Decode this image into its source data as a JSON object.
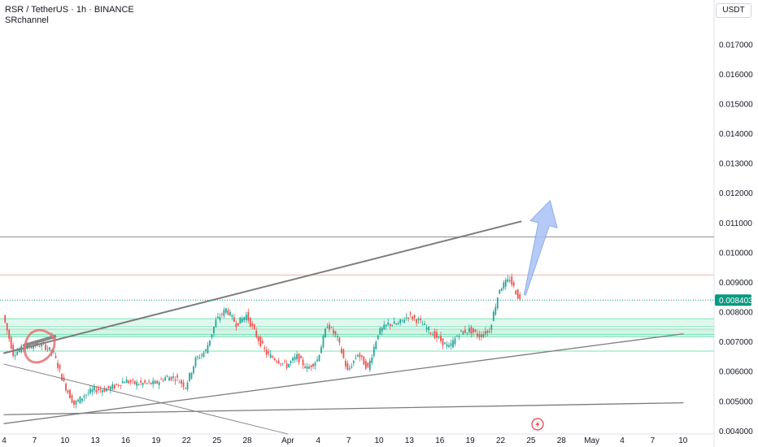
{
  "header": {
    "symbol_line": "RSR / TetherUS · 1h · BINANCE",
    "indicator_name": "SRchannel"
  },
  "currency_button": "USDT",
  "colors": {
    "up": "#26a69a",
    "down": "#ef5350",
    "zone": "#7ee2b8",
    "trendline": "#7c7c7c",
    "arrow": "#a9c1f5",
    "circle": "#e57373",
    "resistance": "#f4b2aa",
    "last_price_bg": "#089981"
  },
  "icons": {
    "alert": "lightning-icon"
  },
  "chart_data": {
    "type": "candlestick",
    "x_axis_labels": [
      "4",
      "7",
      "10",
      "13",
      "16",
      "19",
      "22",
      "25",
      "28",
      "Apr",
      "4",
      "7",
      "10",
      "13",
      "16",
      "19",
      "22",
      "25",
      "28",
      "May",
      "4",
      "7",
      "10"
    ],
    "y_axis_labels": [
      "0.017000",
      "0.016000",
      "0.015000",
      "0.014000",
      "0.013000",
      "0.012000",
      "0.011000",
      "0.010000",
      "0.009000",
      "0.008000",
      "0.007000",
      "0.006000",
      "0.005000",
      "0.004000"
    ],
    "ylim": [
      0.0039,
      0.0185
    ],
    "last_price": "0.008403",
    "horizontal_levels": [
      0.01053,
      0.00925,
      0.00778,
      0.00751,
      0.00743,
      0.00725,
      0.00717,
      0.00669
    ],
    "trendlines": [
      {
        "kind": "upper-channel",
        "from": [
          "Mar 4",
          0.00662
        ],
        "to": [
          "Apr 24",
          0.01105
        ]
      },
      {
        "kind": "lower-channel",
        "from": [
          "Mar 4",
          0.00425
        ],
        "to": [
          "May 10",
          0.00727
        ]
      },
      {
        "kind": "base-line",
        "from": [
          "Mar 4",
          0.00455
        ],
        "to": [
          "May 10",
          0.00495
        ]
      },
      {
        "kind": "descending",
        "from": [
          "Mar 4",
          0.00625
        ],
        "to": [
          "Apr 1",
          0.0039
        ]
      },
      {
        "kind": "marker",
        "from": [
          "Mar 6",
          0.00688
        ],
        "to": [
          "Mar 9",
          0.00718
        ]
      }
    ],
    "projection_arrow": {
      "from": [
        "Apr 24",
        0.00858
      ],
      "to": [
        "Apr 26",
        0.01175
      ]
    },
    "price_path": [
      [
        "Mar 4",
        0.0079
      ],
      [
        "Mar 5",
        0.0066
      ],
      [
        "Mar 6",
        0.0068
      ],
      [
        "Mar 7",
        0.0069
      ],
      [
        "Mar 8",
        0.0069
      ],
      [
        "Mar 9",
        0.0066
      ],
      [
        "Mar 10",
        0.0056
      ],
      [
        "Mar 11",
        0.0049
      ],
      [
        "Mar 12",
        0.0052
      ],
      [
        "Mar 13",
        0.0054
      ],
      [
        "Mar 14",
        0.0054
      ],
      [
        "Mar 15",
        0.0055
      ],
      [
        "Mar 16",
        0.0057
      ],
      [
        "Mar 17",
        0.0056
      ],
      [
        "Mar 18",
        0.0056
      ],
      [
        "Mar 19",
        0.0056
      ],
      [
        "Mar 20",
        0.0058
      ],
      [
        "Mar 21",
        0.0058
      ],
      [
        "Mar 22",
        0.0055
      ],
      [
        "Mar 23",
        0.0064
      ],
      [
        "Mar 24",
        0.0067
      ],
      [
        "Mar 25",
        0.0077
      ],
      [
        "Mar 26",
        0.0081
      ],
      [
        "Mar 27",
        0.0076
      ],
      [
        "Mar 28",
        0.0079
      ],
      [
        "Mar 29",
        0.0072
      ],
      [
        "Mar 30",
        0.0066
      ],
      [
        "Mar 31",
        0.0064
      ],
      [
        "Apr 1",
        0.0062
      ],
      [
        "Apr 2",
        0.0065
      ],
      [
        "Apr 3",
        0.0061
      ],
      [
        "Apr 4",
        0.0064
      ],
      [
        "Apr 5",
        0.0076
      ],
      [
        "Apr 6",
        0.0071
      ],
      [
        "Apr 7",
        0.006
      ],
      [
        "Apr 8",
        0.0066
      ],
      [
        "Apr 9",
        0.0061
      ],
      [
        "Apr 10",
        0.0073
      ],
      [
        "Apr 11",
        0.0076
      ],
      [
        "Apr 12",
        0.0076
      ],
      [
        "Apr 13",
        0.0079
      ],
      [
        "Apr 14",
        0.0077
      ],
      [
        "Apr 15",
        0.0074
      ],
      [
        "Apr 16",
        0.0071
      ],
      [
        "Apr 17",
        0.0068
      ],
      [
        "Apr 18",
        0.0073
      ],
      [
        "Apr 19",
        0.0074
      ],
      [
        "Apr 20",
        0.0072
      ],
      [
        "Apr 21",
        0.0074
      ],
      [
        "Apr 22",
        0.0088
      ],
      [
        "Apr 23",
        0.0091
      ],
      [
        "Apr 24",
        0.0084
      ]
    ]
  }
}
